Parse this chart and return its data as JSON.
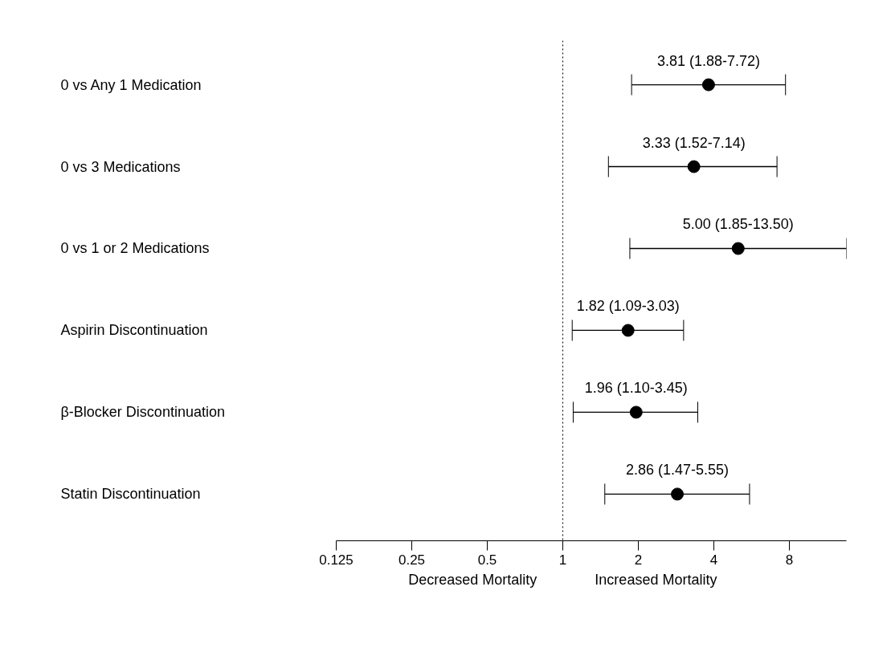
{
  "chart_data": {
    "type": "scatter",
    "orientation": "horizontal",
    "categories": [
      "0 vs Any 1 Medication",
      "0 vs 3 Medications",
      "0 vs 1 or 2 Medications",
      "Aspirin Discontinuation",
      "β-Blocker Discontinuation",
      "Statin Discontinuation"
    ],
    "values": [
      3.81,
      3.33,
      5.0,
      1.82,
      1.96,
      2.86
    ],
    "errors": [
      [
        1.88,
        7.72
      ],
      [
        1.52,
        7.14
      ],
      [
        1.85,
        13.5
      ],
      [
        1.09,
        3.03
      ],
      [
        1.1,
        3.45
      ],
      [
        1.47,
        5.55
      ]
    ],
    "value_labels": [
      "3.81 (1.88-7.72)",
      "3.33 (1.52-7.14)",
      "5.00 (1.85-13.50)",
      "1.82 (1.09-3.03)",
      "1.96 (1.10-3.45)",
      "2.86 (1.47-5.55)"
    ],
    "color": "#000000",
    "marker": "circle",
    "log": "x",
    "grid": false,
    "xlim": [
      0.125,
      13.5
    ],
    "xticks": [
      {
        "value": 0.125,
        "label": "0.125"
      },
      {
        "value": 0.25,
        "label": "0.25"
      },
      {
        "value": 0.5,
        "label": "0.5"
      },
      {
        "value": 1,
        "label": "1"
      },
      {
        "value": 2,
        "label": "2"
      },
      {
        "value": 4,
        "label": "4"
      },
      {
        "value": 8,
        "label": "8"
      }
    ],
    "ref_lines": [
      {
        "axis": "x",
        "value": 1,
        "line_style": "dotted",
        "color": "#000000"
      }
    ],
    "annotations": [
      "Decreased Mortality",
      "Increased Mortality"
    ]
  }
}
